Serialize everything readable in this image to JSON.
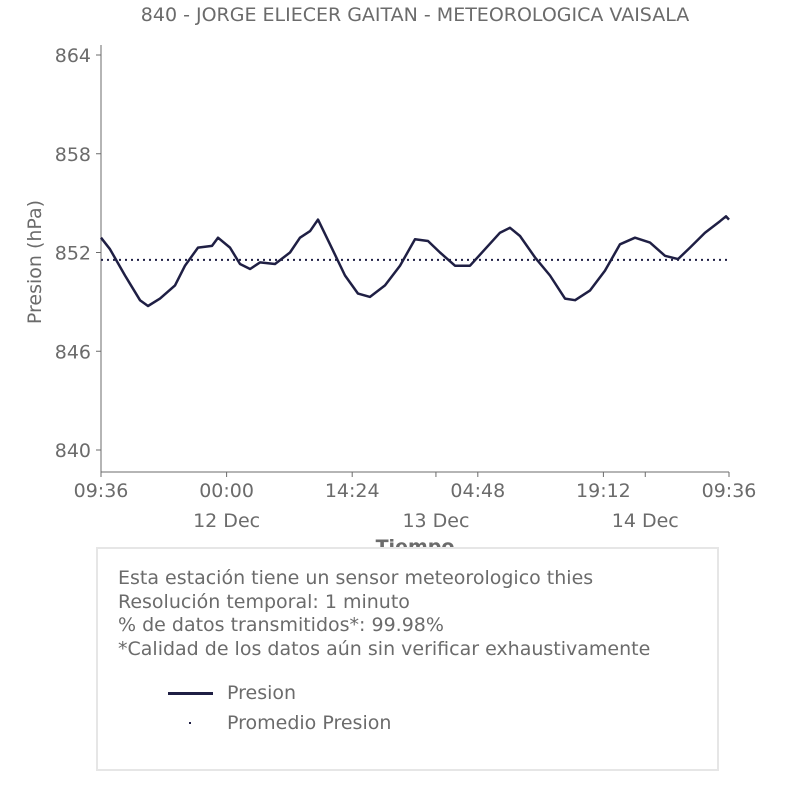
{
  "chart_data": {
    "type": "line",
    "title": "840 - JORGE ELIECER GAITAN - METEOROLOGICA VAISALA",
    "xlabel": "Tiempo",
    "ylabel": "Presion (hPa)",
    "ylim": [
      840,
      864
    ],
    "yticks": [
      840,
      846,
      852,
      858,
      864
    ],
    "xlim_hours": [
      0,
      72
    ],
    "x_unit": "hours since 11 Dec 09:36",
    "xticks": [
      {
        "t": 0,
        "label": "09:36",
        "sub": ""
      },
      {
        "t": 14.4,
        "label": "00:00",
        "sub": "12 Dec"
      },
      {
        "t": 28.8,
        "label": "14:24",
        "sub": ""
      },
      {
        "t": 43.2,
        "label": "04:48",
        "sub": ""
      },
      {
        "t": 57.6,
        "label": "19:12",
        "sub": ""
      },
      {
        "t": 72,
        "label": "09:36",
        "sub": ""
      }
    ],
    "minor_ticks": [
      {
        "t": 38.4,
        "sub": "13 Dec"
      },
      {
        "t": 62.4,
        "sub": "14 Dec"
      }
    ],
    "grid": false,
    "series": [
      {
        "name": "Presion",
        "color": "#1f1f44",
        "style": "solid",
        "t": [
          0,
          1.03,
          2.75,
          4.47,
          5.39,
          6.76,
          8.48,
          9.63,
          11.12,
          12.73,
          13.41,
          14.79,
          15.94,
          17.09,
          18.23,
          19.95,
          21.67,
          22.82,
          23.97,
          24.88,
          26.26,
          27.98,
          29.47,
          30.84,
          32.56,
          34.28,
          36.0,
          37.49,
          38.87,
          40.59,
          42.31,
          44.03,
          45.75,
          46.89,
          48.04,
          49.76,
          51.48,
          53.2,
          54.35,
          56.07,
          57.78,
          59.5,
          61.22,
          62.94,
          64.66,
          66.15,
          67.53,
          69.25,
          70.97,
          71.66,
          72
        ],
        "values": [
          852.9,
          852.2,
          850.6,
          849.1,
          848.75,
          849.2,
          850.0,
          851.2,
          852.3,
          852.4,
          852.9,
          852.3,
          851.3,
          851.0,
          851.4,
          851.3,
          852.0,
          852.9,
          853.3,
          854.0,
          852.5,
          850.6,
          849.5,
          849.3,
          850.0,
          851.2,
          852.8,
          852.7,
          852.0,
          851.2,
          851.2,
          852.2,
          853.2,
          853.5,
          853.0,
          851.7,
          850.6,
          849.2,
          849.1,
          849.7,
          850.9,
          852.5,
          852.9,
          852.6,
          851.8,
          851.6,
          852.3,
          853.2,
          853.9,
          854.2,
          854.0
        ]
      },
      {
        "name": "Promedio Presion",
        "color": "#1f1f44",
        "style": "dotted",
        "value": 851.55
      }
    ],
    "legend_position": "bottom"
  },
  "notes": {
    "line1": "Esta estación tiene un sensor meteorologico thies",
    "line2": "Resolución temporal: 1 minuto",
    "line3": "% de datos transmitidos*: 99.98%",
    "line4": "*Calidad de los datos aún sin verificar exhaustivamente"
  },
  "legend": {
    "presion": "Presion",
    "promedio": "Promedio Presion"
  }
}
